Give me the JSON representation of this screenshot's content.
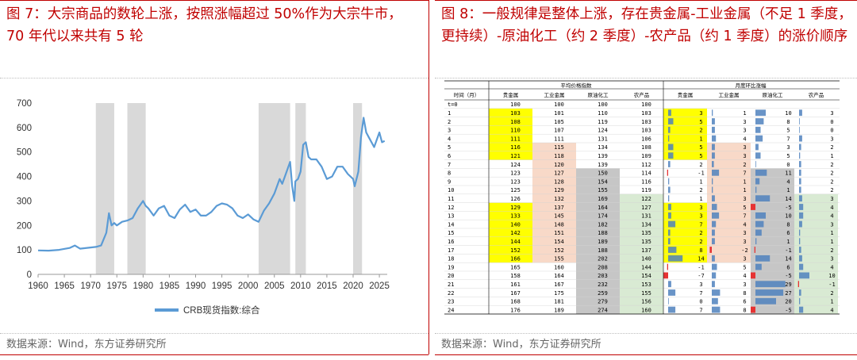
{
  "left": {
    "title": "图 7：大宗商品的数轮上涨，按照涨幅超过 50%作为大宗牛市，70 年代以来共有 5 轮",
    "source": "数据来源：Wind，东方证券研究所",
    "chart_data": {
      "type": "line",
      "title": "",
      "series": [
        {
          "name": "CRB现货指数:综合",
          "color": "#5b9bd5",
          "x": [
            1960,
            1962,
            1964,
            1966,
            1967,
            1968,
            1970,
            1971,
            1972,
            1973,
            1973.5,
            1974,
            1974.5,
            1975,
            1976,
            1977,
            1978,
            1979,
            1980,
            1980.5,
            1981,
            1982,
            1983,
            1984,
            1985,
            1986,
            1987,
            1988,
            1989,
            1990,
            1991,
            1992,
            1993,
            1994,
            1995,
            1996,
            1997,
            1998,
            1999,
            2000,
            2001,
            2002,
            2003,
            2004,
            2005,
            2006,
            2006.5,
            2007,
            2008,
            2008.4,
            2008.8,
            2009,
            2009.5,
            2010,
            2010.5,
            2011,
            2011.5,
            2012,
            2013,
            2014,
            2015,
            2016,
            2017,
            2018,
            2019,
            2020,
            2020.3,
            2021,
            2021.5,
            2022,
            2022.5,
            2023,
            2024,
            2025,
            2025.5,
            2026
          ],
          "values": [
            98,
            97,
            100,
            108,
            118,
            105,
            110,
            112,
            118,
            170,
            250,
            200,
            210,
            200,
            215,
            220,
            230,
            270,
            300,
            280,
            270,
            240,
            270,
            280,
            240,
            230,
            265,
            285,
            255,
            265,
            240,
            240,
            255,
            280,
            290,
            285,
            270,
            240,
            230,
            245,
            225,
            215,
            260,
            290,
            330,
            390,
            370,
            400,
            460,
            360,
            300,
            380,
            390,
            420,
            530,
            540,
            480,
            470,
            470,
            440,
            390,
            400,
            440,
            440,
            410,
            390,
            360,
            420,
            560,
            640,
            580,
            560,
            520,
            580,
            540,
            545
          ]
        }
      ],
      "bull_periods": [
        [
          1971,
          1974.5
        ],
        [
          1977,
          1980.5
        ],
        [
          2002,
          2008
        ],
        [
          2009,
          2011
        ],
        [
          2020,
          2021.7
        ]
      ],
      "x_ticks": [
        1960,
        1965,
        1970,
        1975,
        1980,
        1985,
        1990,
        1995,
        2000,
        2005,
        2010,
        2015,
        2020,
        2025
      ],
      "y_ticks": [
        0,
        100,
        200,
        300,
        400,
        500,
        600,
        700
      ],
      "ylim": [
        0,
        700
      ],
      "xlim": [
        1960,
        2026.5
      ],
      "legend": "bottom",
      "legend_label": "CRB现货指数:综合"
    }
  },
  "right": {
    "title": "图 8：一般规律是整体上涨，存在贵金属-工业金属（不足 1 季度，更持续）-原油化工（约 2 季度）-农产品（约 1 季度）的涨价顺序",
    "source": "数据来源：Wind，东方证券研究所",
    "chart_data": {
      "type": "table",
      "group_headers": [
        "平均价格指数",
        "月度环比涨幅"
      ],
      "columns": [
        "时间（月）",
        "贵金属",
        "工业金属",
        "原油化工",
        "农产品",
        "贵金属",
        "工业金属",
        "原油化工",
        "农产品"
      ],
      "rows": [
        [
          "t=0",
          100,
          100,
          100,
          100,
          null,
          null,
          null,
          null
        ],
        [
          "1",
          103,
          101,
          110,
          103,
          3,
          1,
          10,
          3
        ],
        [
          "2",
          108,
          105,
          119,
          103,
          5,
          3,
          8,
          0
        ],
        [
          "3",
          110,
          107,
          124,
          103,
          2,
          3,
          5,
          0
        ],
        [
          "4",
          111,
          111,
          131,
          106,
          1,
          4,
          7,
          3
        ],
        [
          "5",
          116,
          115,
          134,
          108,
          5,
          3,
          3,
          2
        ],
        [
          "6",
          121,
          118,
          139,
          109,
          5,
          3,
          5,
          1
        ],
        [
          "7",
          124,
          120,
          139,
          112,
          2,
          2,
          0,
          2
        ],
        [
          "8",
          123,
          127,
          150,
          114,
          -1,
          7,
          11,
          2
        ],
        [
          "9",
          123,
          128,
          154,
          116,
          1,
          1,
          4,
          2
        ],
        [
          "10",
          125,
          129,
          155,
          119,
          2,
          1,
          1,
          2
        ],
        [
          "11",
          126,
          132,
          169,
          122,
          1,
          3,
          14,
          3
        ],
        [
          "12",
          129,
          137,
          164,
          127,
          3,
          5,
          -5,
          4
        ],
        [
          "13",
          133,
          145,
          174,
          131,
          3,
          7,
          10,
          4
        ],
        [
          "14",
          140,
          148,
          182,
          134,
          7,
          4,
          8,
          3
        ],
        [
          "15",
          142,
          151,
          188,
          135,
          2,
          3,
          6,
          1
        ],
        [
          "16",
          144,
          154,
          189,
          135,
          2,
          3,
          1,
          1
        ],
        [
          "17",
          152,
          152,
          188,
          137,
          8,
          -2,
          -1,
          2
        ],
        [
          "18",
          166,
          155,
          202,
          140,
          14,
          3,
          14,
          3
        ],
        [
          "19",
          165,
          160,
          208,
          144,
          -1,
          5,
          6,
          4
        ],
        [
          "20",
          158,
          164,
          203,
          154,
          -7,
          4,
          -5,
          10
        ],
        [
          "21",
          161,
          167,
          232,
          153,
          3,
          3,
          29,
          -1
        ],
        [
          "22",
          167,
          175,
          259,
          155,
          7,
          8,
          27,
          2
        ],
        [
          "23",
          168,
          181,
          279,
          156,
          0,
          6,
          20,
          1
        ],
        [
          "24",
          176,
          189,
          274,
          160,
          7,
          8,
          -5,
          4
        ]
      ],
      "highlight_colors": {
        "precious": "#ffff00",
        "industrial": "#f8d9c8",
        "crude": "#c6c6c6",
        "agri": "#d9ead3",
        "bar": "#4f81bd",
        "neg_bar": "#e63333"
      },
      "highlight_rows": {
        "precious": [
          1,
          2,
          3,
          4,
          5,
          6,
          12,
          13,
          14,
          15,
          16,
          17,
          18
        ],
        "industrial": [
          5,
          6,
          7,
          8,
          9,
          10,
          11,
          12,
          13,
          14,
          15,
          16,
          17,
          18
        ],
        "crude": [
          8,
          9,
          10,
          11,
          12,
          13,
          14,
          15,
          16,
          17,
          18,
          19,
          20,
          21,
          22,
          23,
          24
        ],
        "agri": [
          11,
          12,
          13,
          14,
          15,
          16,
          17,
          18,
          19,
          20,
          21,
          22,
          23,
          24
        ]
      }
    }
  }
}
